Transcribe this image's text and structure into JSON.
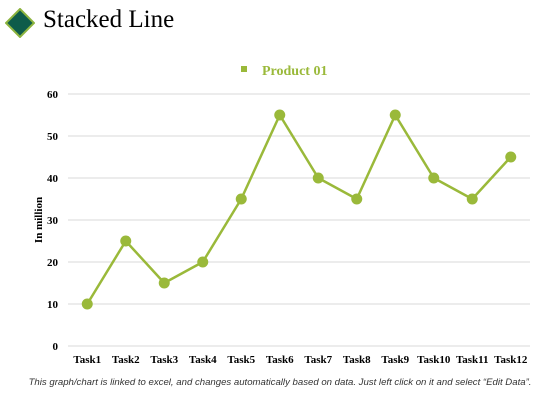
{
  "header": {
    "title": "Stacked Line"
  },
  "colors": {
    "title_diamond_fill": "#0e5c4a",
    "title_diamond_border": "#8db43f",
    "series": "#9ab93a",
    "gridline": "#d9d9d9",
    "text": "#000000"
  },
  "chart_data": {
    "type": "line",
    "title": "",
    "xlabel": "",
    "ylabel": "In million",
    "categories": [
      "Task1",
      "Task2",
      "Task3",
      "Task4",
      "Task5",
      "Task6",
      "Task7",
      "Task8",
      "Task9",
      "Task10",
      "Task11",
      "Task12"
    ],
    "series": [
      {
        "name": "Product 01",
        "values": [
          10,
          25,
          15,
          20,
          35,
          55,
          40,
          35,
          55,
          40,
          35,
          45
        ]
      }
    ],
    "ylim": [
      0,
      60
    ],
    "yticks": [
      0,
      10,
      20,
      30,
      40,
      50,
      60
    ],
    "grid": true,
    "legend": "top-center",
    "markers": true
  },
  "footnote": "This graph/chart is linked to excel, and changes automatically based on data. Just left click on it and select “Edit Data”."
}
